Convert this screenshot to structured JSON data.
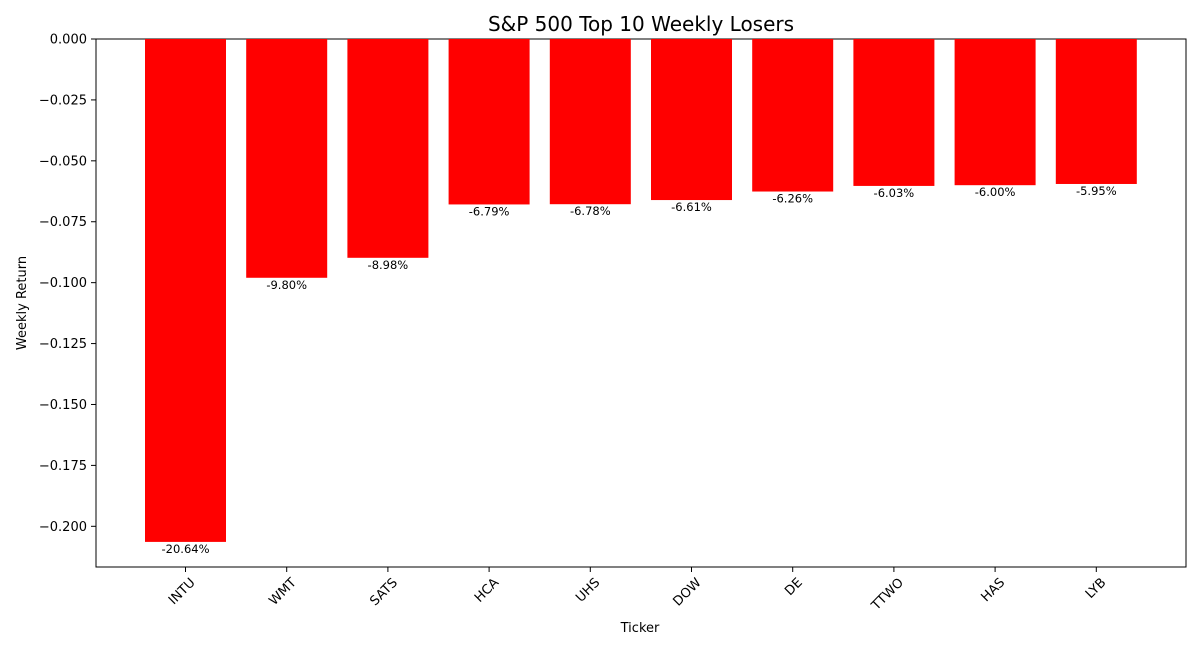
{
  "chart_data": {
    "type": "bar",
    "title": "S&P 500 Top 10 Weekly Losers",
    "xlabel": "Ticker",
    "ylabel": "Weekly Return",
    "categories": [
      "INTU",
      "WMT",
      "SATS",
      "HCA",
      "UHS",
      "DOW",
      "DE",
      "TTWO",
      "HAS",
      "LYB"
    ],
    "values": [
      -0.2064,
      -0.098,
      -0.0898,
      -0.0679,
      -0.0678,
      -0.0661,
      -0.0626,
      -0.0603,
      -0.06,
      -0.0595
    ],
    "data_labels": [
      "-20.64%",
      "-9.80%",
      "-8.98%",
      "-6.79%",
      "-6.78%",
      "-6.61%",
      "-6.26%",
      "-6.03%",
      "-6.00%",
      "-5.95%"
    ],
    "yticks": [
      0.0,
      -0.025,
      -0.05,
      -0.075,
      -0.1,
      -0.125,
      -0.15,
      -0.175,
      -0.2
    ],
    "ytick_labels": [
      "0.000",
      "−0.025",
      "−0.050",
      "−0.075",
      "−0.100",
      "−0.125",
      "−0.150",
      "−0.175",
      "−0.200"
    ],
    "ylim": [
      -0.2167,
      0.0
    ],
    "bar_color": "#ff0000",
    "grid": false,
    "legend": false
  }
}
